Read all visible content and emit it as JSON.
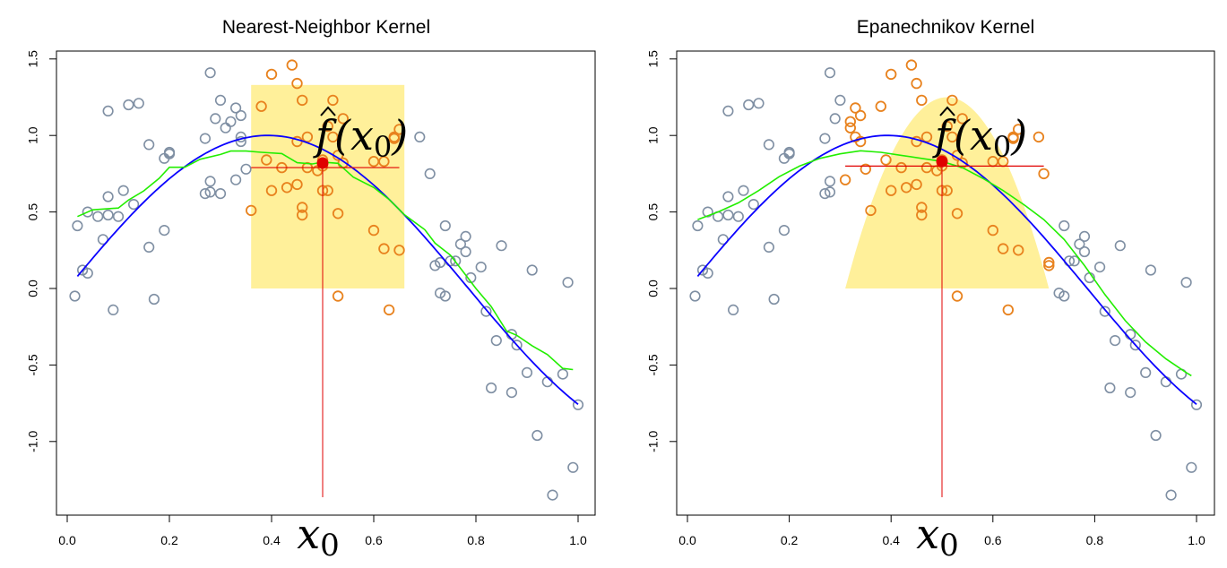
{
  "chart_data": [
    {
      "type": "scatter",
      "title": "Nearest-Neighbor Kernel",
      "xlim": [
        0,
        1
      ],
      "ylim": [
        -1.45,
        1.55
      ],
      "xticks": [
        "0.0",
        "0.2",
        "0.4",
        "0.6",
        "0.8",
        "1.0"
      ],
      "yticks": [
        "-1.0",
        "-0.5",
        "0.0",
        "0.5",
        "1.0",
        "1.5"
      ],
      "x0": 0.5,
      "x0_label": "x",
      "x0_sub": "0",
      "fhat_label": "f",
      "fhat_arg": "(x",
      "fhat_sub": "0",
      "fhat_close": ")",
      "fhat_value": 0.82,
      "window": {
        "shape": "rect",
        "x_from": 0.36,
        "x_to": 0.66,
        "height": 1.33
      },
      "hline": {
        "x_from": 0.36,
        "x_to": 0.65,
        "y": 0.79
      },
      "colors": {
        "true": "#0a00ff",
        "fit": "#22ee00",
        "window": "#fff09a",
        "in": "#e8821e",
        "out": "#7f8fa3",
        "marker": "#e00000"
      },
      "true_curve": {
        "fn": "sin4x",
        "x_from": 0.02,
        "x_to": 1.0
      },
      "fit_curve": [
        [
          0.02,
          0.47
        ],
        [
          0.05,
          0.52
        ],
        [
          0.1,
          0.52
        ],
        [
          0.12,
          0.56
        ],
        [
          0.15,
          0.65
        ],
        [
          0.18,
          0.72
        ],
        [
          0.2,
          0.78
        ],
        [
          0.23,
          0.81
        ],
        [
          0.26,
          0.85
        ],
        [
          0.3,
          0.87
        ],
        [
          0.32,
          0.88
        ],
        [
          0.35,
          0.91
        ],
        [
          0.38,
          0.89
        ],
        [
          0.42,
          0.87
        ],
        [
          0.45,
          0.84
        ],
        [
          0.48,
          0.82
        ],
        [
          0.5,
          0.82
        ],
        [
          0.53,
          0.8
        ],
        [
          0.56,
          0.74
        ],
        [
          0.6,
          0.66
        ],
        [
          0.63,
          0.57
        ],
        [
          0.66,
          0.5
        ],
        [
          0.7,
          0.39
        ],
        [
          0.72,
          0.29
        ],
        [
          0.75,
          0.2
        ],
        [
          0.78,
          0.1
        ],
        [
          0.8,
          0.0
        ],
        [
          0.83,
          -0.13
        ],
        [
          0.86,
          -0.26
        ],
        [
          0.88,
          -0.3
        ],
        [
          0.91,
          -0.38
        ],
        [
          0.94,
          -0.45
        ],
        [
          0.97,
          -0.51
        ],
        [
          0.99,
          -0.53
        ]
      ],
      "points": [
        [
          0.015,
          -0.05,
          0
        ],
        [
          0.02,
          0.41,
          0
        ],
        [
          0.03,
          0.12,
          0
        ],
        [
          0.04,
          0.1,
          0
        ],
        [
          0.04,
          0.5,
          0
        ],
        [
          0.06,
          0.47,
          0
        ],
        [
          0.07,
          0.32,
          0
        ],
        [
          0.08,
          0.6,
          0
        ],
        [
          0.08,
          1.16,
          0
        ],
        [
          0.08,
          0.48,
          0
        ],
        [
          0.09,
          -0.14,
          0
        ],
        [
          0.1,
          0.47,
          0
        ],
        [
          0.11,
          0.64,
          0
        ],
        [
          0.12,
          1.2,
          0
        ],
        [
          0.13,
          0.55,
          0
        ],
        [
          0.14,
          1.21,
          0
        ],
        [
          0.16,
          0.27,
          0
        ],
        [
          0.16,
          0.94,
          0
        ],
        [
          0.17,
          -0.07,
          0
        ],
        [
          0.19,
          0.38,
          0
        ],
        [
          0.19,
          0.85,
          0
        ],
        [
          0.2,
          0.88,
          0
        ],
        [
          0.2,
          0.89,
          0
        ],
        [
          0.27,
          0.62,
          0
        ],
        [
          0.27,
          0.98,
          0
        ],
        [
          0.28,
          0.7,
          0
        ],
        [
          0.28,
          1.41,
          0
        ],
        [
          0.28,
          0.63,
          0
        ],
        [
          0.29,
          1.11,
          0
        ],
        [
          0.3,
          1.23,
          0
        ],
        [
          0.3,
          0.62,
          0
        ],
        [
          0.31,
          1.05,
          0
        ],
        [
          0.32,
          1.09,
          0
        ],
        [
          0.33,
          1.18,
          0
        ],
        [
          0.33,
          0.71,
          0
        ],
        [
          0.34,
          0.99,
          0
        ],
        [
          0.34,
          1.13,
          0
        ],
        [
          0.34,
          0.96,
          0
        ],
        [
          0.35,
          0.78,
          0
        ],
        [
          0.36,
          0.51,
          1
        ],
        [
          0.38,
          1.19,
          1
        ],
        [
          0.39,
          0.84,
          1
        ],
        [
          0.4,
          0.64,
          1
        ],
        [
          0.4,
          1.4,
          1
        ],
        [
          0.42,
          0.79,
          1
        ],
        [
          0.43,
          0.66,
          1
        ],
        [
          0.44,
          1.46,
          1
        ],
        [
          0.45,
          0.68,
          1
        ],
        [
          0.45,
          0.96,
          1
        ],
        [
          0.45,
          1.34,
          1
        ],
        [
          0.46,
          0.53,
          1
        ],
        [
          0.46,
          0.48,
          1
        ],
        [
          0.46,
          1.23,
          1
        ],
        [
          0.47,
          0.99,
          1
        ],
        [
          0.47,
          0.79,
          1
        ],
        [
          0.49,
          0.77,
          1
        ],
        [
          0.5,
          0.8,
          1
        ],
        [
          0.5,
          0.84,
          1
        ],
        [
          0.5,
          0.64,
          1
        ],
        [
          0.51,
          0.64,
          1
        ],
        [
          0.51,
          1.06,
          1
        ],
        [
          0.52,
          1.23,
          1
        ],
        [
          0.52,
          0.99,
          1
        ],
        [
          0.53,
          -0.05,
          1
        ],
        [
          0.53,
          0.87,
          1
        ],
        [
          0.54,
          1.11,
          1
        ],
        [
          0.53,
          0.49,
          1
        ],
        [
          0.54,
          0.82,
          1
        ],
        [
          0.6,
          0.38,
          1
        ],
        [
          0.6,
          0.83,
          1
        ],
        [
          0.62,
          0.26,
          1
        ],
        [
          0.62,
          0.83,
          1
        ],
        [
          0.63,
          -0.14,
          1
        ],
        [
          0.64,
          0.99,
          1
        ],
        [
          0.64,
          0.98,
          1
        ],
        [
          0.65,
          0.25,
          1
        ],
        [
          0.65,
          1.04,
          1
        ],
        [
          0.69,
          0.99,
          0
        ],
        [
          0.71,
          0.75,
          0
        ],
        [
          0.72,
          0.15,
          0
        ],
        [
          0.73,
          0.17,
          0
        ],
        [
          0.73,
          -0.03,
          0
        ],
        [
          0.74,
          -0.05,
          0
        ],
        [
          0.74,
          0.41,
          0
        ],
        [
          0.75,
          0.18,
          0
        ],
        [
          0.76,
          0.18,
          0
        ],
        [
          0.77,
          0.29,
          0
        ],
        [
          0.78,
          0.34,
          0
        ],
        [
          0.78,
          0.24,
          0
        ],
        [
          0.79,
          0.07,
          0
        ],
        [
          0.81,
          0.14,
          0
        ],
        [
          0.82,
          -0.15,
          0
        ],
        [
          0.83,
          -0.65,
          0
        ],
        [
          0.84,
          -0.34,
          0
        ],
        [
          0.85,
          0.28,
          0
        ],
        [
          0.87,
          -0.3,
          0
        ],
        [
          0.87,
          -0.68,
          0
        ],
        [
          0.88,
          -0.37,
          0
        ],
        [
          0.9,
          -0.55,
          0
        ],
        [
          0.91,
          0.12,
          0
        ],
        [
          0.92,
          -0.96,
          0
        ],
        [
          0.94,
          -0.61,
          0
        ],
        [
          0.95,
          -1.35,
          0
        ],
        [
          0.97,
          -0.56,
          0
        ],
        [
          0.98,
          0.04,
          0
        ],
        [
          0.99,
          -1.17,
          0
        ],
        [
          1.0,
          -0.76,
          0
        ]
      ]
    },
    {
      "type": "scatter",
      "title": "Epanechnikov Kernel",
      "xlim": [
        0,
        1
      ],
      "ylim": [
        -1.45,
        1.55
      ],
      "xticks": [
        "0.0",
        "0.2",
        "0.4",
        "0.6",
        "0.8",
        "1.0"
      ],
      "yticks": [
        "-1.0",
        "-0.5",
        "0.0",
        "0.5",
        "1.0",
        "1.5"
      ],
      "x0": 0.5,
      "x0_label": "x",
      "x0_sub": "0",
      "fhat_label": "f",
      "fhat_arg": "(x",
      "fhat_sub": "0",
      "fhat_close": ")",
      "fhat_value": 0.83,
      "window": {
        "shape": "epanechnikov",
        "x_from": 0.31,
        "x_to": 0.71,
        "height": 1.25
      },
      "hline": {
        "x_from": 0.31,
        "x_to": 0.7,
        "y": 0.8
      },
      "colors": {
        "true": "#0a00ff",
        "fit": "#22ee00",
        "window": "#fff09a",
        "in": "#e8821e",
        "out": "#7f8fa3",
        "marker": "#e00000"
      },
      "true_curve": {
        "fn": "sin4x",
        "x_from": 0.02,
        "x_to": 1.0
      },
      "fit_curve": [
        [
          0.02,
          0.45
        ],
        [
          0.06,
          0.5
        ],
        [
          0.1,
          0.56
        ],
        [
          0.14,
          0.64
        ],
        [
          0.18,
          0.73
        ],
        [
          0.22,
          0.8
        ],
        [
          0.26,
          0.85
        ],
        [
          0.3,
          0.88
        ],
        [
          0.34,
          0.9
        ],
        [
          0.38,
          0.89
        ],
        [
          0.42,
          0.87
        ],
        [
          0.46,
          0.85
        ],
        [
          0.5,
          0.83
        ],
        [
          0.54,
          0.79
        ],
        [
          0.58,
          0.72
        ],
        [
          0.62,
          0.64
        ],
        [
          0.66,
          0.55
        ],
        [
          0.7,
          0.45
        ],
        [
          0.74,
          0.32
        ],
        [
          0.78,
          0.15
        ],
        [
          0.82,
          -0.04
        ],
        [
          0.86,
          -0.21
        ],
        [
          0.9,
          -0.35
        ],
        [
          0.94,
          -0.46
        ],
        [
          0.98,
          -0.55
        ],
        [
          0.99,
          -0.57
        ]
      ],
      "points": [
        [
          0.015,
          -0.05,
          0
        ],
        [
          0.02,
          0.41,
          0
        ],
        [
          0.03,
          0.12,
          0
        ],
        [
          0.04,
          0.1,
          0
        ],
        [
          0.04,
          0.5,
          0
        ],
        [
          0.06,
          0.47,
          0
        ],
        [
          0.07,
          0.32,
          0
        ],
        [
          0.08,
          0.6,
          0
        ],
        [
          0.08,
          1.16,
          0
        ],
        [
          0.08,
          0.48,
          0
        ],
        [
          0.09,
          -0.14,
          0
        ],
        [
          0.1,
          0.47,
          0
        ],
        [
          0.11,
          0.64,
          0
        ],
        [
          0.12,
          1.2,
          0
        ],
        [
          0.13,
          0.55,
          0
        ],
        [
          0.14,
          1.21,
          0
        ],
        [
          0.16,
          0.27,
          0
        ],
        [
          0.16,
          0.94,
          0
        ],
        [
          0.17,
          -0.07,
          0
        ],
        [
          0.19,
          0.38,
          0
        ],
        [
          0.19,
          0.85,
          0
        ],
        [
          0.2,
          0.88,
          0
        ],
        [
          0.2,
          0.89,
          0
        ],
        [
          0.27,
          0.62,
          0
        ],
        [
          0.27,
          0.98,
          0
        ],
        [
          0.28,
          0.7,
          0
        ],
        [
          0.28,
          1.41,
          0
        ],
        [
          0.28,
          0.63,
          0
        ],
        [
          0.29,
          1.11,
          0
        ],
        [
          0.3,
          1.23,
          0
        ],
        [
          0.31,
          0.71,
          1
        ],
        [
          0.32,
          1.05,
          1
        ],
        [
          0.32,
          1.09,
          1
        ],
        [
          0.33,
          1.18,
          1
        ],
        [
          0.33,
          0.99,
          1
        ],
        [
          0.34,
          1.13,
          1
        ],
        [
          0.34,
          0.96,
          1
        ],
        [
          0.35,
          0.78,
          1
        ],
        [
          0.36,
          0.51,
          1
        ],
        [
          0.38,
          1.19,
          1
        ],
        [
          0.39,
          0.84,
          1
        ],
        [
          0.4,
          0.64,
          1
        ],
        [
          0.4,
          1.4,
          1
        ],
        [
          0.42,
          0.79,
          1
        ],
        [
          0.43,
          0.66,
          1
        ],
        [
          0.44,
          1.46,
          1
        ],
        [
          0.45,
          0.68,
          1
        ],
        [
          0.45,
          0.96,
          1
        ],
        [
          0.45,
          1.34,
          1
        ],
        [
          0.46,
          0.53,
          1
        ],
        [
          0.46,
          0.48,
          1
        ],
        [
          0.46,
          1.23,
          1
        ],
        [
          0.47,
          0.99,
          1
        ],
        [
          0.47,
          0.79,
          1
        ],
        [
          0.49,
          0.77,
          1
        ],
        [
          0.5,
          0.8,
          1
        ],
        [
          0.5,
          0.84,
          1
        ],
        [
          0.5,
          0.64,
          1
        ],
        [
          0.51,
          0.64,
          1
        ],
        [
          0.51,
          1.06,
          1
        ],
        [
          0.52,
          1.23,
          1
        ],
        [
          0.52,
          0.99,
          1
        ],
        [
          0.53,
          -0.05,
          1
        ],
        [
          0.53,
          0.87,
          1
        ],
        [
          0.54,
          1.11,
          1
        ],
        [
          0.53,
          0.49,
          1
        ],
        [
          0.54,
          0.82,
          1
        ],
        [
          0.6,
          0.38,
          1
        ],
        [
          0.6,
          0.83,
          1
        ],
        [
          0.62,
          0.26,
          1
        ],
        [
          0.62,
          0.83,
          1
        ],
        [
          0.63,
          -0.14,
          1
        ],
        [
          0.64,
          0.99,
          1
        ],
        [
          0.64,
          0.98,
          1
        ],
        [
          0.65,
          0.25,
          1
        ],
        [
          0.65,
          1.04,
          1
        ],
        [
          0.69,
          0.99,
          1
        ],
        [
          0.7,
          0.75,
          1
        ],
        [
          0.71,
          0.15,
          1
        ],
        [
          0.71,
          0.17,
          1
        ],
        [
          0.73,
          -0.03,
          0
        ],
        [
          0.74,
          -0.05,
          0
        ],
        [
          0.74,
          0.41,
          0
        ],
        [
          0.75,
          0.18,
          0
        ],
        [
          0.76,
          0.18,
          0
        ],
        [
          0.77,
          0.29,
          0
        ],
        [
          0.78,
          0.34,
          0
        ],
        [
          0.78,
          0.24,
          0
        ],
        [
          0.79,
          0.07,
          0
        ],
        [
          0.81,
          0.14,
          0
        ],
        [
          0.82,
          -0.15,
          0
        ],
        [
          0.83,
          -0.65,
          0
        ],
        [
          0.84,
          -0.34,
          0
        ],
        [
          0.85,
          0.28,
          0
        ],
        [
          0.87,
          -0.3,
          0
        ],
        [
          0.87,
          -0.68,
          0
        ],
        [
          0.88,
          -0.37,
          0
        ],
        [
          0.9,
          -0.55,
          0
        ],
        [
          0.91,
          0.12,
          0
        ],
        [
          0.92,
          -0.96,
          0
        ],
        [
          0.94,
          -0.61,
          0
        ],
        [
          0.95,
          -1.35,
          0
        ],
        [
          0.97,
          -0.56,
          0
        ],
        [
          0.98,
          0.04,
          0
        ],
        [
          0.99,
          -1.17,
          0
        ],
        [
          1.0,
          -0.76,
          0
        ]
      ]
    }
  ]
}
